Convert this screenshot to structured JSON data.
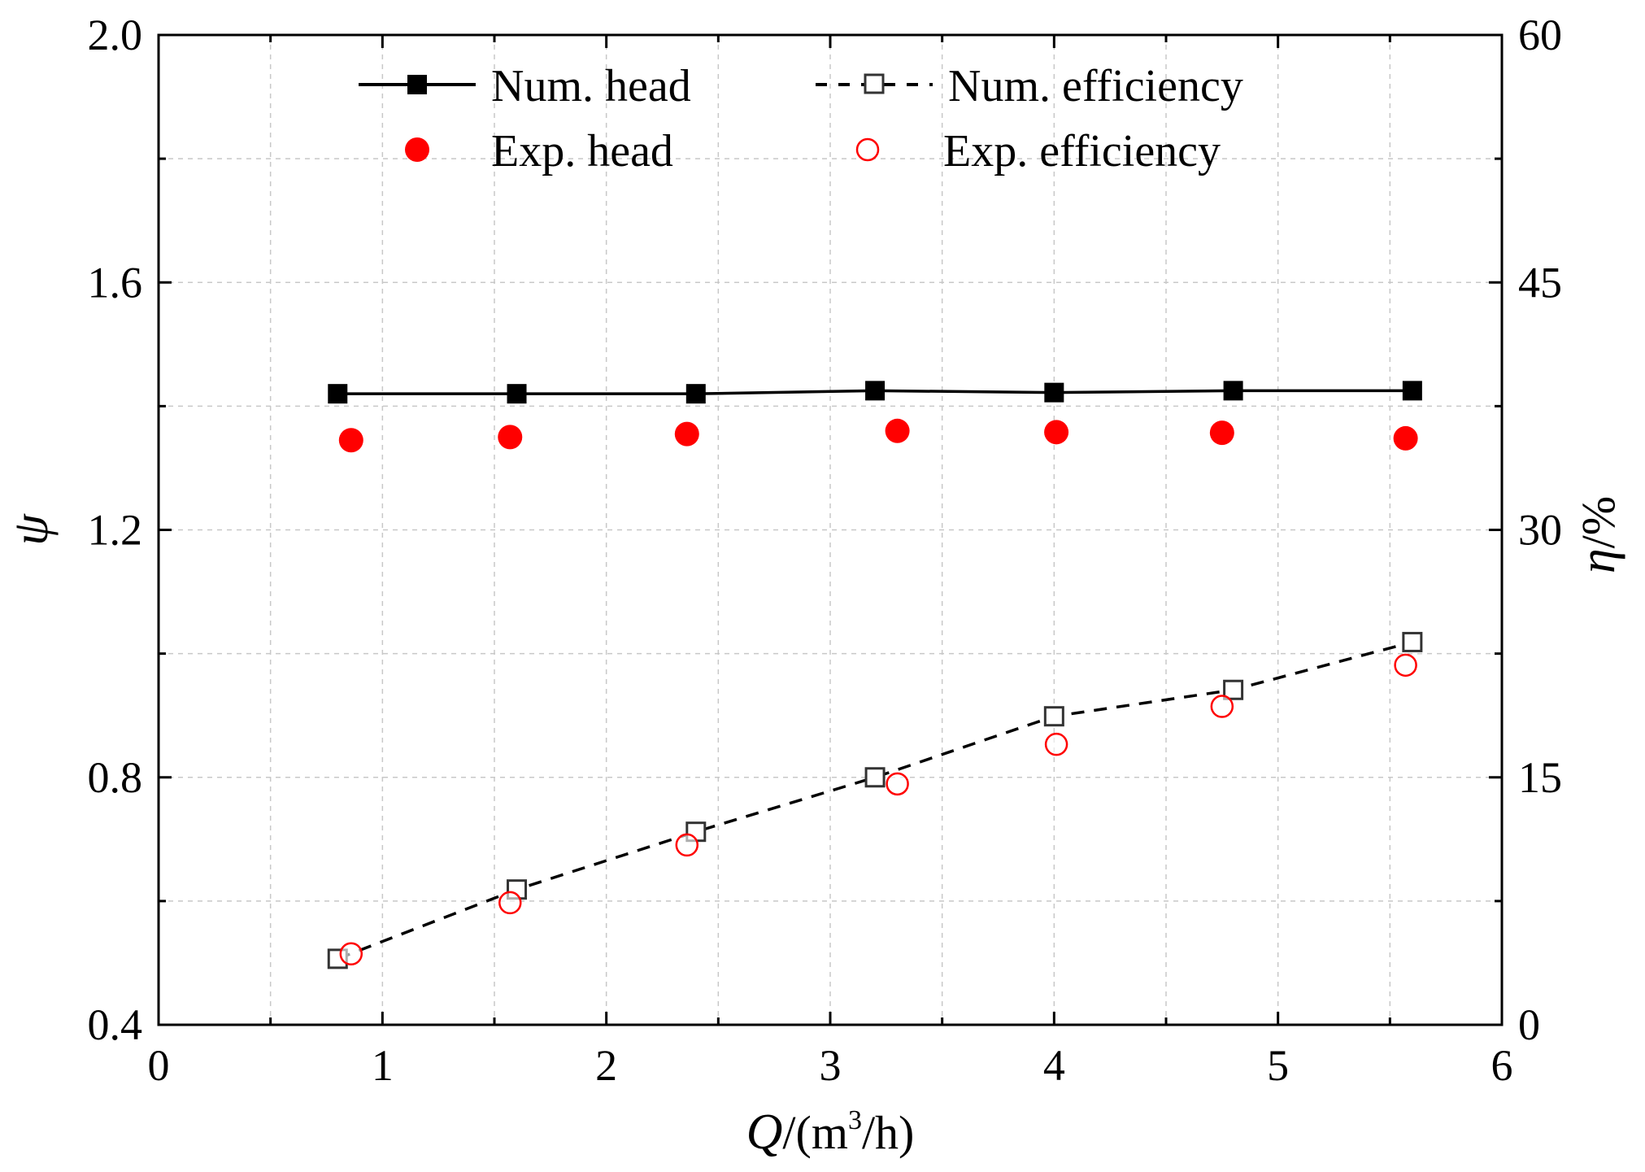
{
  "chart_data": {
    "type": "line",
    "title": "",
    "x": [
      0.8,
      1.6,
      2.4,
      3.2,
      4.0,
      4.8,
      5.6
    ],
    "xlabel": {
      "symbol": "Q",
      "prefix": "/(m",
      "superscript": "3",
      "suffix": "/h)"
    },
    "ylabel_left": "ψ",
    "ylabel_right": {
      "symbol": "η",
      "unit": "/%"
    },
    "xlim": [
      0,
      6
    ],
    "ylim_left": [
      0.4,
      2.0
    ],
    "ylim_right": [
      0,
      60
    ],
    "x_ticks": [
      "0",
      "1",
      "2",
      "3",
      "4",
      "5",
      "6"
    ],
    "y_left_ticks": [
      "0.4",
      "0.8",
      "1.2",
      "1.6",
      "2.0"
    ],
    "y_right_ticks": [
      "0",
      "15",
      "30",
      "45",
      "60"
    ],
    "grid": true,
    "legend_position": "top",
    "series": [
      {
        "name": "Num. head",
        "axis": "left",
        "style": "solid-line-filled-square",
        "color": "#000000",
        "x": [
          0.8,
          1.6,
          2.4,
          3.2,
          4.0,
          4.8,
          5.6
        ],
        "values": [
          1.42,
          1.42,
          1.42,
          1.425,
          1.422,
          1.425,
          1.425
        ]
      },
      {
        "name": "Num. efficiency",
        "axis": "right",
        "style": "dashed-line-open-square",
        "color": "#000000",
        "x": [
          0.8,
          1.6,
          2.4,
          3.2,
          4.0,
          4.8,
          5.6
        ],
        "values": [
          4.0,
          8.2,
          11.7,
          15.0,
          18.7,
          20.3,
          23.2
        ]
      },
      {
        "name": "Exp. head",
        "axis": "left",
        "style": "filled-circle",
        "color": "#ff0000",
        "x": [
          0.86,
          1.57,
          2.36,
          3.3,
          4.01,
          4.75,
          5.57
        ],
        "values": [
          1.345,
          1.35,
          1.355,
          1.36,
          1.358,
          1.357,
          1.348
        ]
      },
      {
        "name": "Exp. efficiency",
        "axis": "right",
        "style": "open-circle",
        "color": "#ff0000",
        "x": [
          0.86,
          1.57,
          2.36,
          3.3,
          4.01,
          4.75,
          5.57
        ],
        "values": [
          4.3,
          7.4,
          10.9,
          14.6,
          17.0,
          19.3,
          21.8
        ]
      }
    ]
  }
}
